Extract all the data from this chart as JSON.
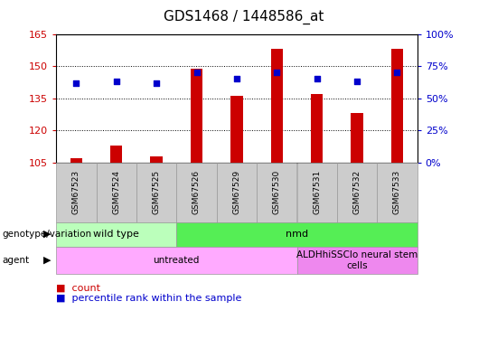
{
  "title": "GDS1468 / 1448586_at",
  "samples": [
    "GSM67523",
    "GSM67524",
    "GSM67525",
    "GSM67526",
    "GSM67529",
    "GSM67530",
    "GSM67531",
    "GSM67532",
    "GSM67533"
  ],
  "counts": [
    107,
    113,
    108,
    149,
    136,
    158,
    137,
    128,
    158
  ],
  "percentile_ranks": [
    62,
    63,
    62,
    70,
    65,
    70,
    65,
    63,
    70
  ],
  "ymin": 105,
  "ymax": 165,
  "y2min": 0,
  "y2max": 100,
  "yticks": [
    105,
    120,
    135,
    150,
    165
  ],
  "y2ticks": [
    0,
    25,
    50,
    75,
    100
  ],
  "bar_color": "#cc0000",
  "dot_color": "#0000cc",
  "genotype_labels": [
    {
      "label": "wild type",
      "start": 0,
      "end": 3,
      "color": "#bbffbb"
    },
    {
      "label": "nmd",
      "start": 3,
      "end": 9,
      "color": "#55ee55"
    }
  ],
  "agent_labels": [
    {
      "label": "untreated",
      "start": 0,
      "end": 6,
      "color": "#ffaaff"
    },
    {
      "label": "ALDHhiSSClo neural stem\ncells",
      "start": 6,
      "end": 9,
      "color": "#ee88ee"
    }
  ],
  "legend_count_color": "#cc0000",
  "legend_perc_color": "#0000cc",
  "bg_color": "#ffffff",
  "sample_bg_color": "#cccccc",
  "bar_width": 0.3
}
